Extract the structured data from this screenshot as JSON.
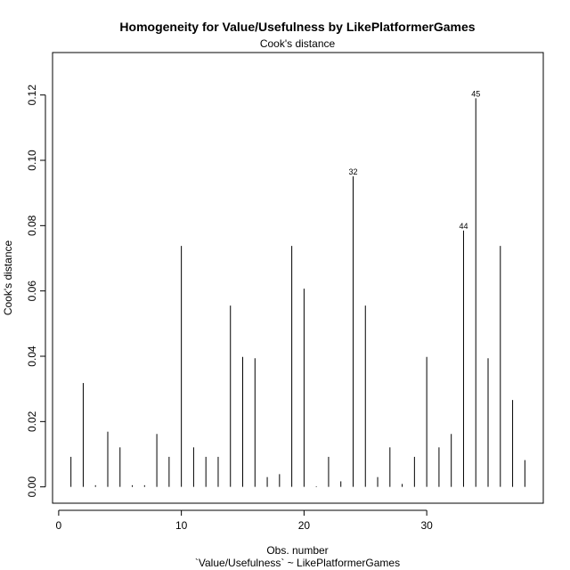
{
  "chart_data": {
    "type": "bar",
    "title": "Homogeneity for Value/Usefulness by LikePlatformerGames",
    "subtitle": "Cook's distance",
    "xlabel": "Obs. number",
    "xlabel2": "`Value/Usefulness` ~ LikePlatformerGames",
    "ylabel": "Cook's distance",
    "xlim": [
      -0.5,
      39.5
    ],
    "ylim": [
      -0.005,
      0.133
    ],
    "xticks": [
      0,
      10,
      20,
      30
    ],
    "yticks": [
      0.0,
      0.02,
      0.04,
      0.06,
      0.08,
      0.1,
      0.12
    ],
    "ytick_labels": [
      "0.00",
      "0.02",
      "0.04",
      "0.06",
      "0.08",
      "0.10",
      "0.12"
    ],
    "x": [
      1,
      2,
      3,
      4,
      5,
      6,
      7,
      8,
      9,
      10,
      11,
      12,
      13,
      14,
      15,
      16,
      17,
      18,
      19,
      20,
      21,
      22,
      23,
      24,
      25,
      26,
      27,
      28,
      29,
      30,
      31,
      32,
      33,
      34,
      35,
      36,
      37,
      38
    ],
    "values": [
      0.0092,
      0.0318,
      0.0005,
      0.0169,
      0.0121,
      0.0005,
      0.0005,
      0.0162,
      0.0092,
      0.0738,
      0.0121,
      0.0092,
      0.0092,
      0.0555,
      0.0398,
      0.0394,
      0.003,
      0.0039,
      0.0738,
      0.0607,
      0.0002,
      0.0092,
      0.0017,
      0.0951,
      0.0555,
      0.003,
      0.0121,
      0.0009,
      0.0092,
      0.0398,
      0.0121,
      0.0162,
      0.0785,
      0.119,
      0.0394,
      0.0738,
      0.0266,
      0.0082
    ],
    "annotations": [
      {
        "x": 24,
        "y": 0.0951,
        "label": "32"
      },
      {
        "x": 33,
        "y": 0.0785,
        "label": "44"
      },
      {
        "x": 34,
        "y": 0.119,
        "label": "45"
      }
    ]
  }
}
